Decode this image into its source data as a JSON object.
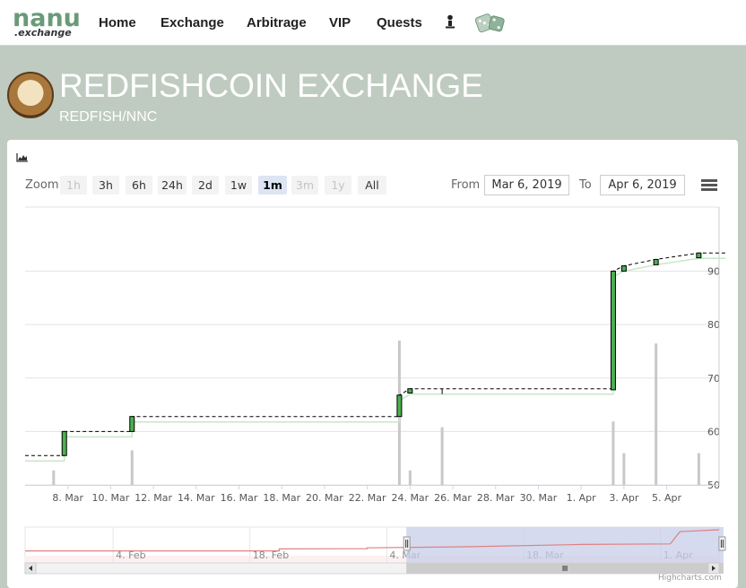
{
  "nav": {
    "logo_main": "nanu",
    "logo_sub": ".exchange",
    "items": [
      "Home",
      "Exchange",
      "Arbitrage",
      "VIP",
      "Quests"
    ]
  },
  "hero": {
    "title": "REDFISHCOIN EXCHANGE",
    "pair": "REDFISH/NNC"
  },
  "range_selector": {
    "zoom_label": "Zoom",
    "buttons": [
      {
        "label": "1h",
        "state": "disabled"
      },
      {
        "label": "3h",
        "state": "normal"
      },
      {
        "label": "6h",
        "state": "normal"
      },
      {
        "label": "24h",
        "state": "normal"
      },
      {
        "label": "2d",
        "state": "normal"
      },
      {
        "label": "1w",
        "state": "normal"
      },
      {
        "label": "1m",
        "state": "selected"
      },
      {
        "label": "3m",
        "state": "disabled"
      },
      {
        "label": "1y",
        "state": "disabled"
      },
      {
        "label": "All",
        "state": "normal"
      }
    ],
    "from_label": "From",
    "from_value": "Mar 6, 2019",
    "to_label": "To",
    "to_value": "Apr 6, 2019"
  },
  "credit": "Highcharts.com",
  "colors": {
    "up_candle": "#4caf50",
    "volume": "#c8c8c8",
    "close_line": "#000000",
    "navigator_line": "#e08080",
    "navigator_mask": "#c7cde8"
  },
  "chart_data": {
    "type": "candlestick",
    "x_ticks": [
      "8. Mar",
      "10. Mar",
      "12. Mar",
      "14. Mar",
      "16. Mar",
      "18. Mar",
      "20. Mar",
      "22. Mar",
      "24. Mar",
      "26. Mar",
      "28. Mar",
      "30. Mar",
      "1. Apr",
      "3. Apr",
      "5. Apr"
    ],
    "y_ticks": [
      50,
      60,
      70,
      80,
      90
    ],
    "y_range": [
      50,
      102
    ],
    "x_range": [
      "2019-03-06",
      "2019-04-06"
    ],
    "candles": [
      {
        "date": "2019-03-07 20:00",
        "open": 55.5,
        "close": 60.0,
        "high": 60.0,
        "low": 55.5
      },
      {
        "date": "2019-03-11 00:00",
        "open": 60.0,
        "close": 62.8,
        "high": 62.8,
        "low": 60.0
      },
      {
        "date": "2019-03-23 12:00",
        "open": 62.8,
        "close": 66.8,
        "high": 66.8,
        "low": 62.8
      },
      {
        "date": "2019-03-24 00:00",
        "open": 67.2,
        "close": 68.0,
        "high": 68.0,
        "low": 67.2
      },
      {
        "date": "2019-04-02 12:00",
        "open": 67.8,
        "close": 90.0,
        "high": 90.0,
        "low": 67.8
      },
      {
        "date": "2019-04-03 00:00",
        "open": 90.0,
        "close": 91.0,
        "high": 91.0,
        "low": 90.0
      },
      {
        "date": "2019-04-04 12:00",
        "open": 91.2,
        "close": 92.2,
        "high": 92.2,
        "low": 91.2
      },
      {
        "date": "2019-04-06 12:00",
        "open": 92.5,
        "close": 93.4,
        "high": 93.4,
        "low": 92.5
      }
    ],
    "close_line": [
      {
        "date": "2019-03-06 00:00",
        "value": 55.5
      },
      {
        "date": "2019-03-07 20:00",
        "value": 55.5
      },
      {
        "date": "2019-03-07 20:00",
        "value": 60.0
      },
      {
        "date": "2019-03-11 00:00",
        "value": 60.0
      },
      {
        "date": "2019-03-11 00:00",
        "value": 62.8
      },
      {
        "date": "2019-03-23 12:00",
        "value": 62.8
      },
      {
        "date": "2019-03-23 12:00",
        "value": 66.8
      },
      {
        "date": "2019-03-24 00:00",
        "value": 68.0
      },
      {
        "date": "2019-04-02 12:00",
        "value": 68.0
      },
      {
        "date": "2019-04-02 12:00",
        "value": 90.0
      },
      {
        "date": "2019-04-03 00:00",
        "value": 91.0
      },
      {
        "date": "2019-04-04 12:00",
        "value": 92.2
      },
      {
        "date": "2019-04-06 12:00",
        "value": 93.4
      },
      {
        "date": "2019-04-07 18:00",
        "value": 93.4
      }
    ],
    "volume": [
      {
        "date": "2019-03-07 08:00",
        "value": 2.5
      },
      {
        "date": "2019-03-11 00:00",
        "value": 6.0
      },
      {
        "date": "2019-03-23 12:00",
        "value": 25.0
      },
      {
        "date": "2019-03-24 00:00",
        "value": 2.5
      },
      {
        "date": "2019-03-25 12:00",
        "value": 10.0
      },
      {
        "date": "2019-04-02 12:00",
        "value": 11.0
      },
      {
        "date": "2019-04-03 00:00",
        "value": 5.5
      },
      {
        "date": "2019-04-04 12:00",
        "value": 24.5
      },
      {
        "date": "2019-04-06 12:00",
        "value": 5.5
      }
    ],
    "navigator": {
      "x_ticks": [
        "4. Feb",
        "18. Feb",
        "4. Mar",
        "18. Mar",
        "1. Apr"
      ],
      "series": [
        {
          "date": "2019-01-26",
          "value": 55.5
        },
        {
          "date": "2019-02-21",
          "value": 55.5
        },
        {
          "date": "2019-02-21",
          "value": 59.0
        },
        {
          "date": "2019-03-02",
          "value": 59.5
        },
        {
          "date": "2019-03-02",
          "value": 61.0
        },
        {
          "date": "2019-03-12",
          "value": 62.8
        },
        {
          "date": "2019-03-24",
          "value": 67.0
        },
        {
          "date": "2019-04-02",
          "value": 68.0
        },
        {
          "date": "2019-04-03",
          "value": 90.0
        },
        {
          "date": "2019-04-07",
          "value": 93.4
        }
      ],
      "selection": [
        "2019-03-06",
        "2019-04-06"
      ]
    }
  }
}
